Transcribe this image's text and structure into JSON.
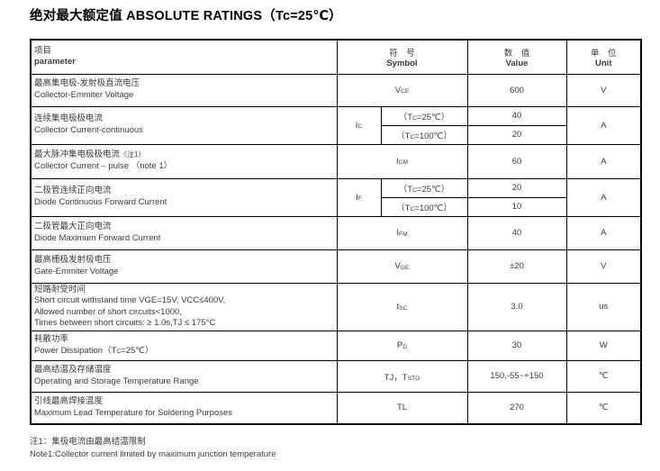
{
  "title": "绝对最大额定值 ABSOLUTE RATINGS（Tc=25℃）",
  "table": {
    "header": {
      "param_zh": "项目",
      "param_en": "parameter",
      "symbol_zh": "符　号",
      "symbol_en": "Symbol",
      "value_zh": "数　值",
      "value_en": "Value",
      "unit_zh": "单　位",
      "unit_en": "Unit"
    },
    "rows": [
      {
        "param_zh": "最高集电极-发射极直流电压",
        "param_en": "Collector-Emmiter Voltage",
        "symbol": [
          [
            "t",
            "V"
          ],
          [
            "s",
            "CE"
          ]
        ],
        "value": "600",
        "unit": "V"
      },
      {
        "param_zh": "连续集电极极电流",
        "param_en": "Collector Current-continuous",
        "symbol": [
          [
            "t",
            "I"
          ],
          [
            "s",
            "C"
          ]
        ],
        "sub_rows": [
          {
            "cond": [
              [
                "t",
                "（T"
              ],
              [
                "s",
                "C"
              ],
              [
                "t",
                "=25℃）"
              ]
            ],
            "value": "40"
          },
          {
            "cond": [
              [
                "t",
                "（T"
              ],
              [
                "s",
                "C"
              ],
              [
                "t",
                "=100℃）"
              ]
            ],
            "value": "20"
          }
        ],
        "unit": "A"
      },
      {
        "param_zh": "最大脉冲集电极极电流",
        "param_zh_note": "（注1）",
        "param_en": "Collector Current – pulse （note 1）",
        "symbol": [
          [
            "t",
            "I"
          ],
          [
            "s",
            "CM"
          ]
        ],
        "value": "60",
        "unit": "A"
      },
      {
        "param_zh": "二极管连续正向电流",
        "param_en": "Diode Continuous Forward Current",
        "symbol": [
          [
            "t",
            "I"
          ],
          [
            "s",
            "F"
          ]
        ],
        "sub_rows": [
          {
            "cond": [
              [
                "t",
                "（T"
              ],
              [
                "s",
                "C"
              ],
              [
                "t",
                "=25℃）"
              ]
            ],
            "value": "20"
          },
          {
            "cond": [
              [
                "t",
                "（T"
              ],
              [
                "s",
                "C"
              ],
              [
                "t",
                "=100℃）"
              ]
            ],
            "value": "10"
          }
        ],
        "unit": "A"
      },
      {
        "param_zh": "二极管最大正向电流",
        "param_en": "Diode Maximum Forward Current",
        "symbol": [
          [
            "t",
            "I"
          ],
          [
            "s",
            "FM"
          ]
        ],
        "value": "40",
        "unit": "A"
      },
      {
        "param_zh": "最高栅极发射极电压",
        "param_en": "Gate-Emmiter Voltage",
        "symbol": [
          [
            "t",
            "V"
          ],
          [
            "s",
            "GE"
          ]
        ],
        "value": "±20",
        "unit": "V"
      },
      {
        "param_zh": "短路耐受时间",
        "param_en_lines": [
          "Short circuit withstand time VGE=15V, VCC≤400V,",
          "Allowed number of short circuits<1000,",
          "Times between short circuits: ≥ 1.0s,TJ ≤ 175°C"
        ],
        "symbol": [
          [
            "t",
            "t"
          ],
          [
            "s",
            "SC"
          ]
        ],
        "value": "3.0",
        "unit": "us"
      },
      {
        "param_zh": "耗散功率",
        "param_en_rich": [
          [
            "t",
            "Power Dissipation（T"
          ],
          [
            "s",
            "C"
          ],
          [
            "t",
            "=25℃）"
          ]
        ],
        "symbol": [
          [
            "t",
            "P"
          ],
          [
            "s",
            "D"
          ]
        ],
        "value": "30",
        "unit": "W"
      },
      {
        "param_zh": "最高结温及存储温度",
        "param_en": "Operating and Storage Temperature Range",
        "symbol": [
          [
            "t",
            "TJ，T"
          ],
          [
            "s",
            "STG"
          ]
        ],
        "value": "150,-55~+150",
        "unit": "℃"
      },
      {
        "param_zh": "引线最高焊接温度",
        "param_en": "Maximum Lead Temperature for Soldering Purposes",
        "symbol": [
          [
            "t",
            "TL"
          ]
        ],
        "value": "270",
        "unit": "℃"
      }
    ]
  },
  "notes": {
    "zh": "注1：集极电流由最高结温限制",
    "en": "Note1:Collector current limited by maximum junction temperature"
  },
  "colors": {
    "text": "#3a3a3a",
    "title": "#000000",
    "border": "#000000",
    "background": "#ffffff"
  }
}
